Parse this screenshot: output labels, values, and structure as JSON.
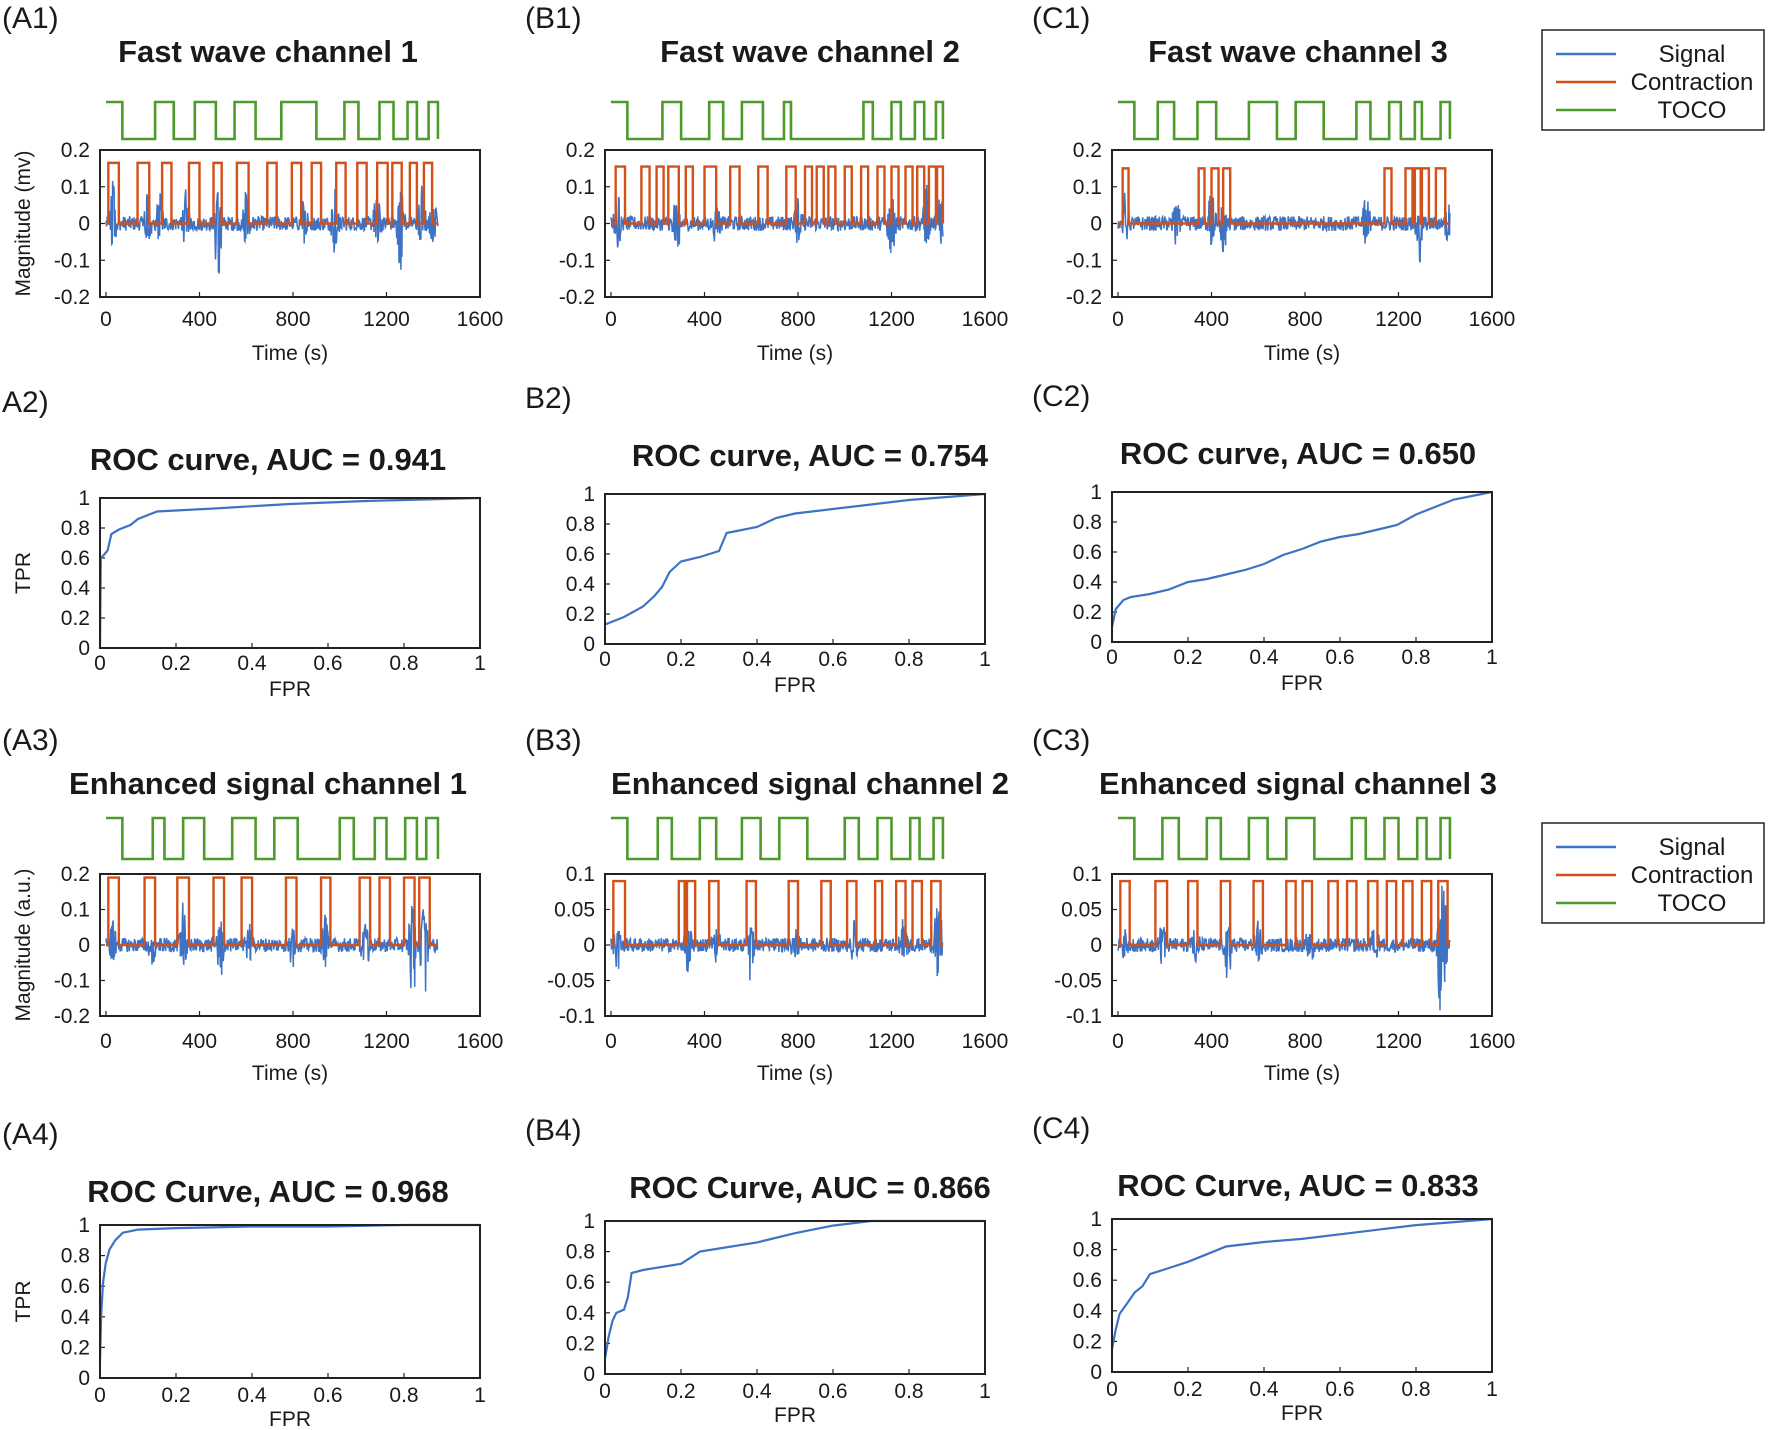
{
  "legend": {
    "entries": [
      "Signal",
      "Contraction",
      "TOCO"
    ],
    "colors": [
      "#3d72c4",
      "#d2501a",
      "#4e9a2a"
    ]
  },
  "chart_data": [
    {
      "panel": "(A1)",
      "type": "line",
      "title": "Fast wave channel 1",
      "xlabel": "Time (s)",
      "ylabel": "Magnitude (mv)",
      "xlim": [
        0,
        1600
      ],
      "ylim": [
        -0.2,
        0.2
      ],
      "xticks": [
        "0",
        "400",
        "800",
        "1200",
        "1600"
      ],
      "yticks": [
        "0.2",
        "0.1",
        "0",
        "-0.1",
        "-0.2"
      ],
      "signal_end": 1420,
      "contraction_level": 0.165,
      "contraction_windows": [
        [
          10,
          55
        ],
        [
          135,
          185
        ],
        [
          240,
          280
        ],
        [
          355,
          400
        ],
        [
          460,
          495
        ],
        [
          560,
          610
        ],
        [
          690,
          730
        ],
        [
          795,
          835
        ],
        [
          880,
          920
        ],
        [
          985,
          1025
        ],
        [
          1075,
          1115
        ],
        [
          1160,
          1205
        ],
        [
          1225,
          1265
        ],
        [
          1300,
          1330
        ],
        [
          1360,
          1395
        ]
      ],
      "toco_windows": [
        [
          70,
          210
        ],
        [
          290,
          380
        ],
        [
          470,
          550
        ],
        [
          640,
          750
        ],
        [
          900,
          1020
        ],
        [
          1080,
          1170
        ],
        [
          1230,
          1290
        ],
        [
          1330,
          1380
        ]
      ],
      "signal_bursts": [
        [
          30,
          0.12
        ],
        [
          180,
          0.1
        ],
        [
          230,
          0.08
        ],
        [
          340,
          0.08
        ],
        [
          480,
          -0.16
        ],
        [
          600,
          0.1
        ],
        [
          850,
          0.08
        ],
        [
          980,
          0.12
        ],
        [
          1160,
          0.1
        ],
        [
          1260,
          -0.15
        ],
        [
          1350,
          0.1
        ],
        [
          1400,
          0.1
        ]
      ]
    },
    {
      "panel": "(B1)",
      "type": "line",
      "title": "Fast wave channel 2",
      "xlabel": "Time (s)",
      "ylabel": "",
      "xlim": [
        0,
        1600
      ],
      "ylim": [
        -0.2,
        0.2
      ],
      "xticks": [
        "0",
        "400",
        "800",
        "1200",
        "1600"
      ],
      "yticks": [
        "0.2",
        "0.1",
        "0",
        "-0.1",
        "-0.2"
      ],
      "signal_end": 1420,
      "contraction_level": 0.155,
      "contraction_windows": [
        [
          20,
          60
        ],
        [
          130,
          165
        ],
        [
          195,
          225
        ],
        [
          245,
          290
        ],
        [
          320,
          350
        ],
        [
          400,
          450
        ],
        [
          510,
          550
        ],
        [
          630,
          670
        ],
        [
          750,
          790
        ],
        [
          830,
          860
        ],
        [
          880,
          910
        ],
        [
          930,
          960
        ],
        [
          1000,
          1030
        ],
        [
          1070,
          1100
        ],
        [
          1140,
          1170
        ],
        [
          1200,
          1230
        ],
        [
          1260,
          1290
        ],
        [
          1310,
          1340
        ],
        [
          1360,
          1390
        ],
        [
          1395,
          1420
        ]
      ],
      "toco_windows": [
        [
          70,
          220
        ],
        [
          300,
          420
        ],
        [
          480,
          560
        ],
        [
          650,
          740
        ],
        [
          770,
          1080
        ],
        [
          1120,
          1200
        ],
        [
          1240,
          1300
        ],
        [
          1340,
          1390
        ]
      ],
      "signal_bursts": [
        [
          30,
          0.1
        ],
        [
          280,
          -0.1
        ],
        [
          450,
          0.08
        ],
        [
          800,
          0.08
        ],
        [
          1200,
          -0.13
        ],
        [
          1350,
          0.1
        ],
        [
          1410,
          0.08
        ]
      ]
    },
    {
      "panel": "(C1)",
      "type": "line",
      "title": "Fast wave channel 3",
      "xlabel": "Time (s)",
      "ylabel": "",
      "xlim": [
        0,
        1600
      ],
      "ylim": [
        -0.2,
        0.2
      ],
      "xticks": [
        "0",
        "400",
        "800",
        "1200",
        "1600"
      ],
      "yticks": [
        "0.2",
        "0.1",
        "0",
        "-0.1",
        "-0.2"
      ],
      "signal_end": 1420,
      "contraction_level": 0.15,
      "contraction_windows": [
        [
          20,
          45
        ],
        [
          345,
          370
        ],
        [
          400,
          430
        ],
        [
          450,
          480
        ],
        [
          1140,
          1170
        ],
        [
          1230,
          1260
        ],
        [
          1270,
          1295
        ],
        [
          1300,
          1330
        ],
        [
          1360,
          1400
        ]
      ],
      "toco_windows": [
        [
          70,
          170
        ],
        [
          240,
          340
        ],
        [
          420,
          560
        ],
        [
          680,
          760
        ],
        [
          880,
          1020
        ],
        [
          1080,
          1160
        ],
        [
          1210,
          1270
        ],
        [
          1300,
          1380
        ]
      ],
      "signal_bursts": [
        [
          30,
          0.08
        ],
        [
          250,
          -0.08
        ],
        [
          400,
          0.1
        ],
        [
          450,
          -0.09
        ],
        [
          1060,
          0.1
        ],
        [
          1290,
          -0.1
        ],
        [
          1410,
          0.08
        ]
      ]
    },
    {
      "panel": "A2)",
      "type": "line",
      "title": "ROC curve, AUC = 0.941",
      "xlabel": "FPR",
      "ylabel": "TPR",
      "xlim": [
        0,
        1
      ],
      "ylim": [
        0,
        1
      ],
      "xticks": [
        "0",
        "0.2",
        "0.4",
        "0.6",
        "0.8",
        "1"
      ],
      "yticks": [
        "1",
        "0.8",
        "0.6",
        "0.4",
        "0.2",
        "0"
      ],
      "x": [
        0,
        0.002,
        0.01,
        0.02,
        0.03,
        0.05,
        0.08,
        0.1,
        0.15,
        0.3,
        0.5,
        0.7,
        0.85,
        1
      ],
      "y": [
        0,
        0.6,
        0.62,
        0.65,
        0.76,
        0.79,
        0.82,
        0.86,
        0.91,
        0.93,
        0.96,
        0.98,
        0.99,
        1
      ]
    },
    {
      "panel": "B2)",
      "type": "line",
      "title": "ROC curve, AUC = 0.754",
      "xlabel": "FPR",
      "ylabel": "",
      "xlim": [
        0,
        1
      ],
      "ylim": [
        0,
        1
      ],
      "xticks": [
        "0",
        "0.2",
        "0.4",
        "0.6",
        "0.8",
        "1"
      ],
      "yticks": [
        "1",
        "0.8",
        "0.6",
        "0.4",
        "0.2",
        "0"
      ],
      "x": [
        0,
        0.05,
        0.1,
        0.13,
        0.15,
        0.17,
        0.2,
        0.25,
        0.3,
        0.32,
        0.4,
        0.45,
        0.5,
        0.6,
        0.7,
        0.8,
        0.9,
        1
      ],
      "y": [
        0.13,
        0.18,
        0.25,
        0.32,
        0.38,
        0.48,
        0.55,
        0.58,
        0.62,
        0.74,
        0.78,
        0.84,
        0.87,
        0.9,
        0.93,
        0.96,
        0.98,
        1
      ]
    },
    {
      "panel": "(C2)",
      "type": "line",
      "title": "ROC curve,  AUC = 0.650",
      "xlabel": "FPR",
      "ylabel": "",
      "xlim": [
        0,
        1
      ],
      "ylim": [
        0,
        1
      ],
      "xticks": [
        "0",
        "0.2",
        "0.4",
        "0.6",
        "0.8",
        "1"
      ],
      "yticks": [
        "1",
        "0.8",
        "0.6",
        "0.4",
        "0.2",
        "0"
      ],
      "x": [
        0,
        0.01,
        0.03,
        0.05,
        0.1,
        0.15,
        0.2,
        0.25,
        0.3,
        0.35,
        0.4,
        0.45,
        0.5,
        0.55,
        0.6,
        0.65,
        0.7,
        0.75,
        0.8,
        0.85,
        0.9,
        1
      ],
      "y": [
        0.1,
        0.22,
        0.28,
        0.3,
        0.32,
        0.35,
        0.4,
        0.42,
        0.45,
        0.48,
        0.52,
        0.58,
        0.62,
        0.67,
        0.7,
        0.72,
        0.75,
        0.78,
        0.85,
        0.9,
        0.95,
        1
      ]
    },
    {
      "panel": "(A3)",
      "type": "line",
      "title": "Enhanced signal channel 1",
      "xlabel": "Time (s)",
      "ylabel": "Magnitude (a.u.)",
      "xlim": [
        0,
        1600
      ],
      "ylim": [
        -0.2,
        0.2
      ],
      "xticks": [
        "0",
        "400",
        "800",
        "1200",
        "1600"
      ],
      "yticks": [
        "0.2",
        "0.1",
        "0",
        "-0.1",
        "-0.2"
      ],
      "signal_end": 1420,
      "contraction_level": 0.19,
      "contraction_windows": [
        [
          10,
          55
        ],
        [
          165,
          210
        ],
        [
          305,
          355
        ],
        [
          460,
          505
        ],
        [
          580,
          625
        ],
        [
          770,
          815
        ],
        [
          920,
          960
        ],
        [
          1085,
          1130
        ],
        [
          1170,
          1215
        ],
        [
          1275,
          1320
        ],
        [
          1340,
          1385
        ]
      ],
      "toco_windows": [
        [
          70,
          200
        ],
        [
          250,
          330
        ],
        [
          420,
          540
        ],
        [
          640,
          720
        ],
        [
          820,
          1000
        ],
        [
          1060,
          1150
        ],
        [
          1200,
          1280
        ],
        [
          1330,
          1370
        ]
      ],
      "signal_bursts": [
        [
          30,
          0.08
        ],
        [
          200,
          -0.06
        ],
        [
          330,
          0.1
        ],
        [
          490,
          -0.1
        ],
        [
          610,
          0.08
        ],
        [
          800,
          -0.08
        ],
        [
          940,
          0.08
        ],
        [
          1110,
          -0.1
        ],
        [
          1310,
          -0.18
        ],
        [
          1360,
          -0.2
        ]
      ]
    },
    {
      "panel": "(B3)",
      "type": "line",
      "title": "Enhanced signal channel 2",
      "xlabel": "Time (s)",
      "ylabel": "",
      "xlim": [
        0,
        1600
      ],
      "ylim": [
        -0.1,
        0.1
      ],
      "xticks": [
        "0",
        "400",
        "800",
        "1200",
        "1600"
      ],
      "yticks": [
        "0.1",
        "0.05",
        "0",
        "-0.05",
        "-0.1"
      ],
      "signal_end": 1420,
      "contraction_level": 0.09,
      "contraction_windows": [
        [
          10,
          60
        ],
        [
          290,
          315
        ],
        [
          325,
          360
        ],
        [
          420,
          460
        ],
        [
          580,
          620
        ],
        [
          760,
          800
        ],
        [
          900,
          940
        ],
        [
          1010,
          1050
        ],
        [
          1130,
          1160
        ],
        [
          1220,
          1260
        ],
        [
          1290,
          1330
        ],
        [
          1370,
          1410
        ]
      ],
      "toco_windows": [
        [
          70,
          200
        ],
        [
          260,
          380
        ],
        [
          450,
          560
        ],
        [
          640,
          720
        ],
        [
          840,
          1000
        ],
        [
          1060,
          1140
        ],
        [
          1200,
          1280
        ],
        [
          1320,
          1380
        ]
      ],
      "signal_bursts": [
        [
          30,
          -0.04
        ],
        [
          330,
          -0.04
        ],
        [
          450,
          0.03
        ],
        [
          600,
          -0.05
        ],
        [
          790,
          -0.03
        ],
        [
          1040,
          0.03
        ],
        [
          1250,
          0.03
        ],
        [
          1400,
          0.08
        ]
      ]
    },
    {
      "panel": "(C3)",
      "type": "line",
      "title": "Enhanced signal channel 3",
      "xlabel": "Time (s)",
      "ylabel": "",
      "xlim": [
        0,
        1600
      ],
      "ylim": [
        -0.1,
        0.1
      ],
      "xticks": [
        "0",
        "400",
        "800",
        "1200",
        "1600"
      ],
      "yticks": [
        "0.1",
        "0.05",
        "0",
        "-0.05",
        "-0.1"
      ],
      "signal_end": 1420,
      "contraction_level": 0.09,
      "contraction_windows": [
        [
          10,
          50
        ],
        [
          160,
          210
        ],
        [
          300,
          340
        ],
        [
          440,
          480
        ],
        [
          580,
          620
        ],
        [
          720,
          760
        ],
        [
          790,
          830
        ],
        [
          900,
          940
        ],
        [
          980,
          1020
        ],
        [
          1070,
          1110
        ],
        [
          1150,
          1190
        ],
        [
          1220,
          1260
        ],
        [
          1300,
          1340
        ],
        [
          1370,
          1410
        ]
      ],
      "toco_windows": [
        [
          70,
          190
        ],
        [
          260,
          380
        ],
        [
          440,
          560
        ],
        [
          640,
          720
        ],
        [
          840,
          1000
        ],
        [
          1060,
          1140
        ],
        [
          1200,
          1280
        ],
        [
          1320,
          1380
        ]
      ],
      "signal_bursts": [
        [
          30,
          -0.03
        ],
        [
          190,
          -0.04
        ],
        [
          330,
          0.03
        ],
        [
          470,
          -0.05
        ],
        [
          600,
          0.03
        ],
        [
          820,
          -0.03
        ],
        [
          1100,
          0.03
        ],
        [
          1380,
          -0.1
        ],
        [
          1395,
          0.08
        ]
      ]
    },
    {
      "panel": "(A4)",
      "type": "line",
      "title": "ROC Curve, AUC = 0.968",
      "xlabel": "FPR",
      "ylabel": "TPR",
      "xlim": [
        0,
        1
      ],
      "ylim": [
        0,
        1
      ],
      "xticks": [
        "0",
        "0.2",
        "0.4",
        "0.6",
        "0.8",
        "1"
      ],
      "yticks": [
        "1",
        "0.8",
        "0.6",
        "0.4",
        "0.2",
        "0"
      ],
      "x": [
        0,
        0.003,
        0.008,
        0.015,
        0.025,
        0.04,
        0.06,
        0.1,
        0.2,
        0.4,
        0.6,
        0.8,
        1
      ],
      "y": [
        0.1,
        0.4,
        0.62,
        0.75,
        0.84,
        0.9,
        0.95,
        0.97,
        0.98,
        0.99,
        0.99,
        1,
        1
      ]
    },
    {
      "panel": "(B4)",
      "type": "line",
      "title": "ROC Curve, AUC = 0.866",
      "xlabel": "FPR",
      "ylabel": "",
      "xlim": [
        0,
        1
      ],
      "ylim": [
        0,
        1
      ],
      "xticks": [
        "0",
        "0.2",
        "0.4",
        "0.6",
        "0.8",
        "1"
      ],
      "yticks": [
        "1",
        "0.8",
        "0.6",
        "0.4",
        "0.2",
        "0"
      ],
      "x": [
        0,
        0.01,
        0.02,
        0.03,
        0.05,
        0.06,
        0.07,
        0.1,
        0.2,
        0.25,
        0.3,
        0.4,
        0.5,
        0.6,
        0.7,
        1
      ],
      "y": [
        0.1,
        0.25,
        0.35,
        0.4,
        0.42,
        0.5,
        0.66,
        0.68,
        0.72,
        0.8,
        0.82,
        0.86,
        0.92,
        0.97,
        1,
        1
      ]
    },
    {
      "panel": "(C4)",
      "type": "line",
      "title": "ROC Curve, AUC = 0.833",
      "xlabel": "FPR",
      "ylabel": "",
      "xlim": [
        0,
        1
      ],
      "ylim": [
        0,
        1
      ],
      "xticks": [
        "0",
        "0.2",
        "0.4",
        "0.6",
        "0.8",
        "1"
      ],
      "yticks": [
        "1",
        "0.8",
        "0.6",
        "0.4",
        "0.2",
        "0"
      ],
      "x": [
        0,
        0.01,
        0.02,
        0.04,
        0.06,
        0.08,
        0.1,
        0.15,
        0.2,
        0.25,
        0.3,
        0.4,
        0.5,
        0.6,
        0.7,
        0.8,
        0.9,
        1
      ],
      "y": [
        0.15,
        0.28,
        0.38,
        0.45,
        0.52,
        0.56,
        0.64,
        0.68,
        0.72,
        0.77,
        0.82,
        0.85,
        0.87,
        0.9,
        0.93,
        0.96,
        0.98,
        1
      ]
    }
  ]
}
